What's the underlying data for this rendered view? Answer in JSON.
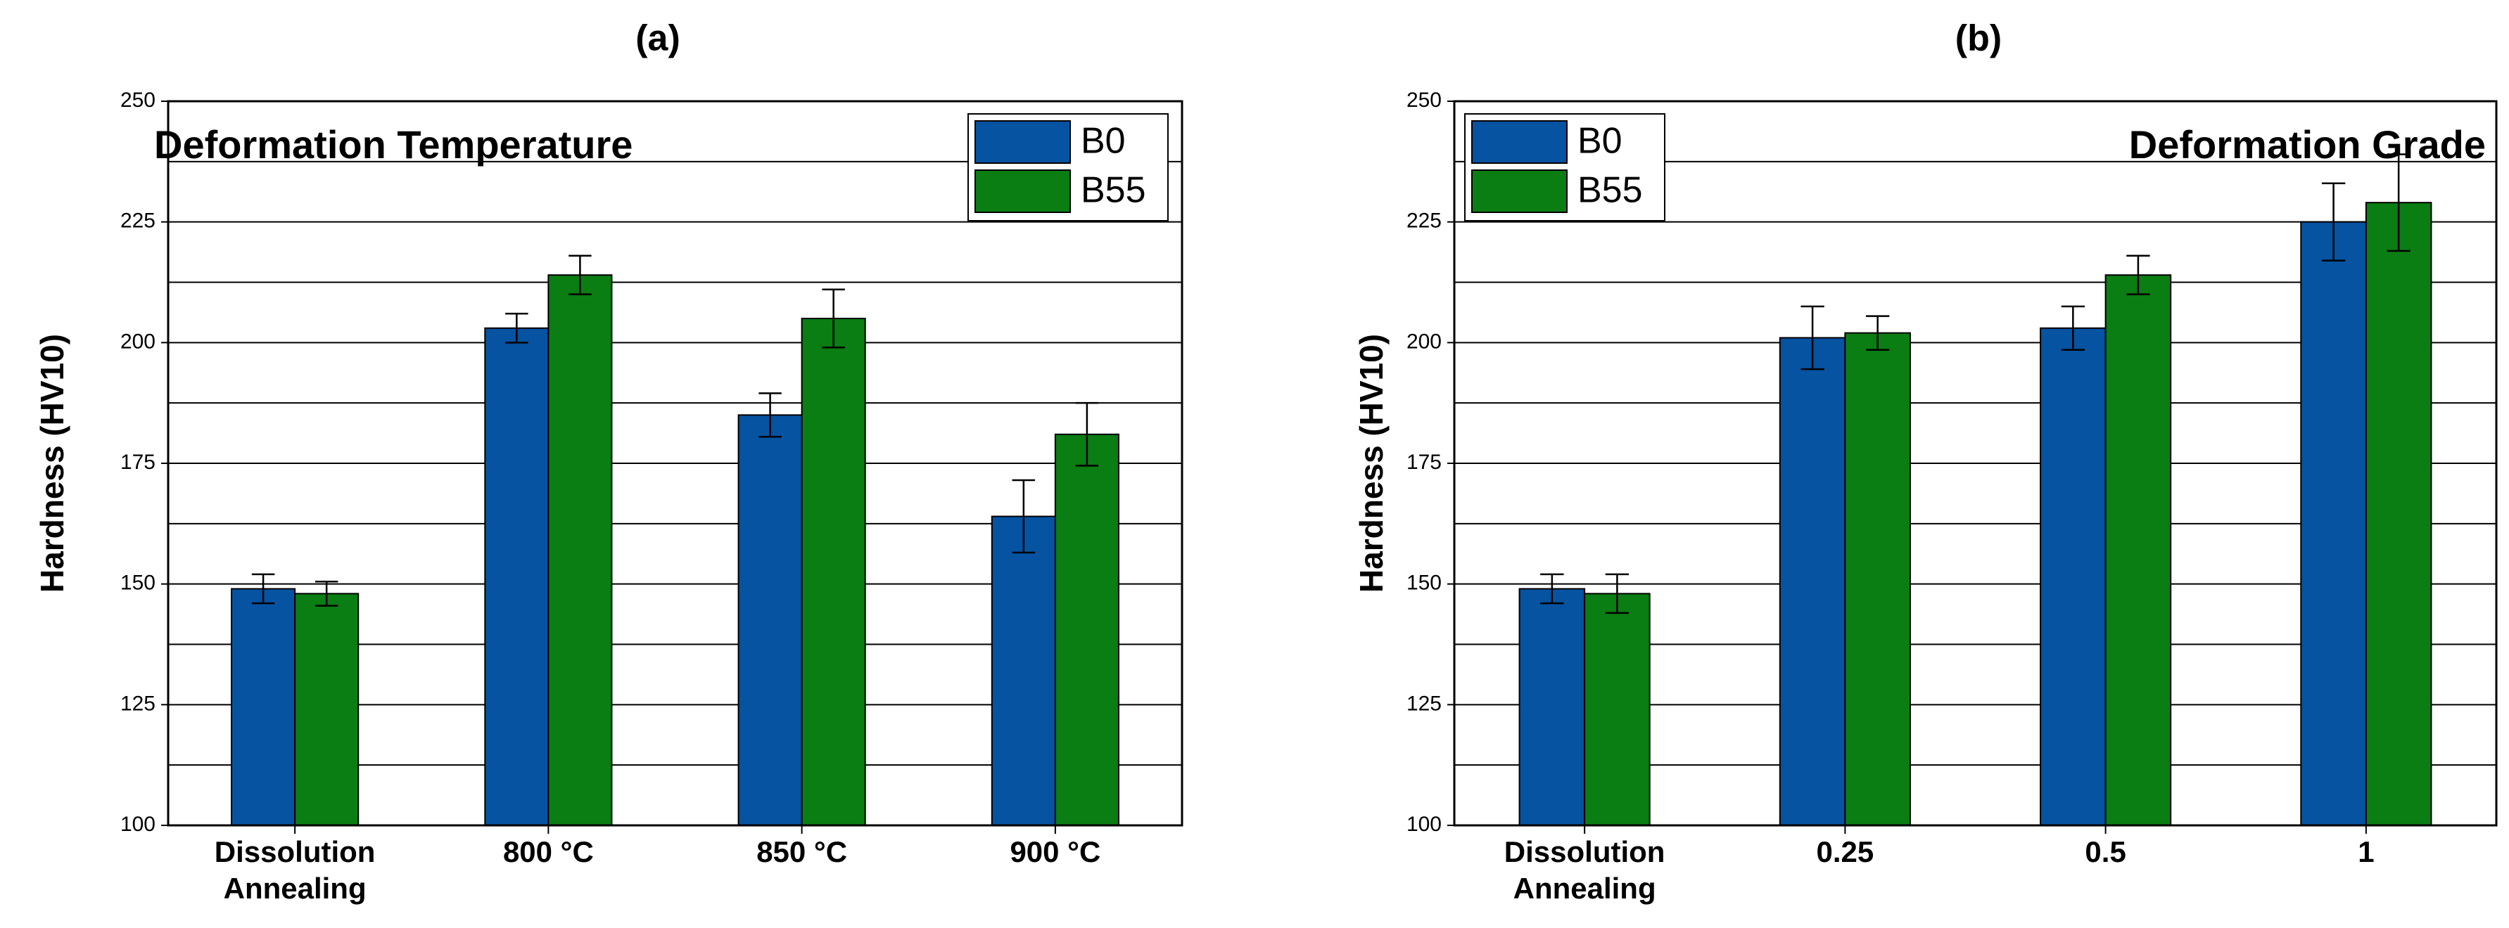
{
  "chart_data": [
    {
      "type": "bar",
      "panel_label": "(a)",
      "title": "Deformation Temperature",
      "title_position": "top-left",
      "ylabel": "Hardness (HV10)",
      "xlabel": "",
      "ylim": [
        100,
        250
      ],
      "yticks": [
        100,
        125,
        150,
        175,
        200,
        225,
        250
      ],
      "grid": true,
      "legend_position": "top-right",
      "categories": [
        [
          "Dissolution",
          "Annealing"
        ],
        [
          "800 °C"
        ],
        [
          "850 °C"
        ],
        [
          "900 °C"
        ]
      ],
      "series": [
        {
          "name": "B0",
          "color": "#0553a1",
          "values": [
            149,
            203,
            185,
            164
          ],
          "errors": [
            3,
            3,
            4.5,
            7.5
          ]
        },
        {
          "name": "B55",
          "color": "#0a7d13",
          "values": [
            148,
            214,
            205,
            181
          ],
          "errors": [
            2.5,
            4,
            6,
            6.5
          ]
        }
      ]
    },
    {
      "type": "bar",
      "panel_label": "(b)",
      "title": "Deformation Grade",
      "title_position": "top-right",
      "ylabel": "Hardness (HV10)",
      "xlabel": "",
      "ylim": [
        100,
        250
      ],
      "yticks": [
        100,
        125,
        150,
        175,
        200,
        225,
        250
      ],
      "grid": true,
      "legend_position": "top-left",
      "categories": [
        [
          "Dissolution",
          "Annealing"
        ],
        [
          "0.25"
        ],
        [
          "0.5"
        ],
        [
          "1"
        ]
      ],
      "series": [
        {
          "name": "B0",
          "color": "#0553a1",
          "values": [
            149,
            201,
            203,
            225
          ],
          "errors": [
            3,
            6.5,
            4.5,
            8
          ]
        },
        {
          "name": "B55",
          "color": "#0a7d13",
          "values": [
            148,
            202,
            214,
            229
          ],
          "errors": [
            4,
            3.5,
            4,
            10
          ]
        }
      ]
    }
  ]
}
